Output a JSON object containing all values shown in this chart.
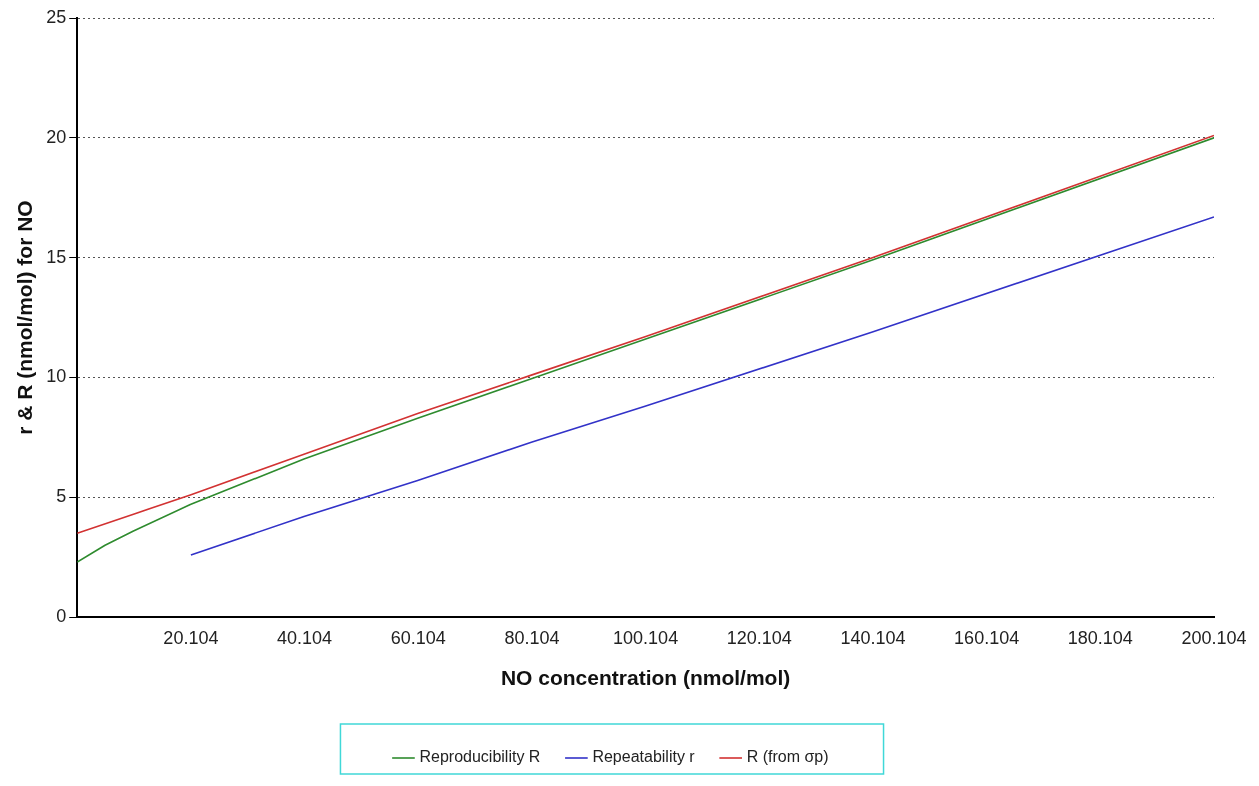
{
  "chart_data": {
    "type": "line",
    "xlabel": "NO concentration (nmol/mol)",
    "ylabel": "r & R (nmol/mol) for NO",
    "xlim": [
      0.104,
      200.104
    ],
    "xticks": [
      20.104,
      40.104,
      60.104,
      80.104,
      100.104,
      120.104,
      140.104,
      160.104,
      180.104,
      200.104
    ],
    "ylim": [
      0,
      25
    ],
    "yticks": [
      0,
      5,
      10,
      15,
      20,
      25
    ],
    "grid": "y",
    "legend": "bottom",
    "marker": "none",
    "line_style": "solid",
    "series": [
      {
        "name": "Reproducibility R",
        "color": "#2e8b2e",
        "x": [
          0.104,
          5,
          10,
          20,
          40,
          60,
          80,
          100,
          140,
          200.104
        ],
        "values": [
          2.3,
          3.0,
          3.6,
          4.7,
          6.6,
          8.3,
          9.95,
          11.6,
          14.9,
          20.0
        ]
      },
      {
        "name": "Repeatability r",
        "color": "#3232c8",
        "x": [
          20.104,
          40,
          60,
          80,
          100,
          140,
          200.104
        ],
        "values": [
          2.6,
          4.2,
          5.7,
          7.3,
          8.8,
          11.9,
          16.7
        ]
      },
      {
        "name": "R (from σp)",
        "color": "#d23232",
        "x": [
          0.104,
          10,
          20,
          40,
          60,
          80,
          100,
          140,
          200.104
        ],
        "values": [
          3.5,
          4.3,
          5.1,
          6.8,
          8.5,
          10.1,
          11.7,
          15.0,
          20.1
        ]
      }
    ]
  }
}
